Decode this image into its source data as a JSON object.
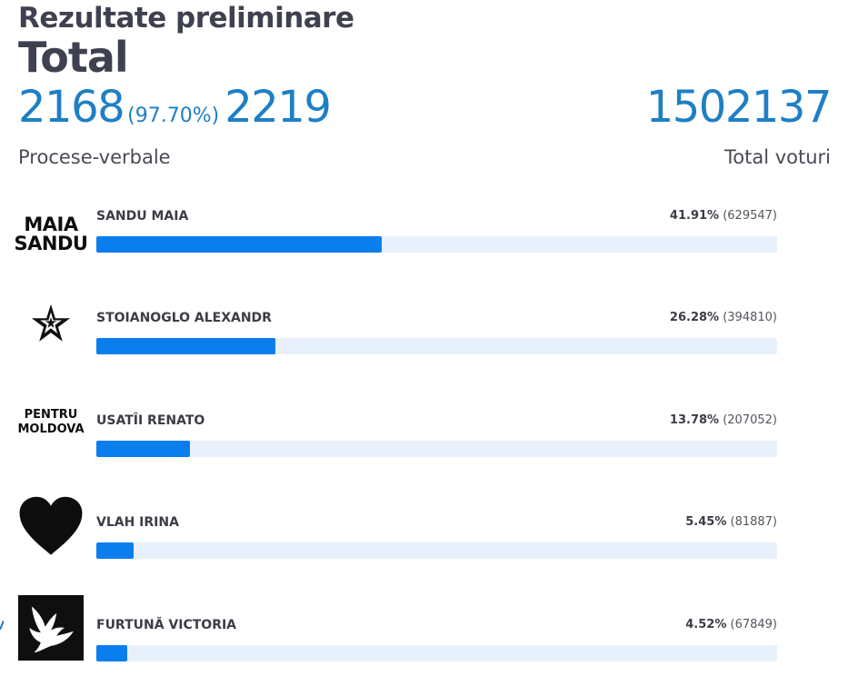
{
  "header": {
    "title": "Rezultate preliminare",
    "subtitle": "Total",
    "processed": "2168",
    "processed_pct": "(97.70%)",
    "total_reports": "2219",
    "reports_label": "Procese-verbale",
    "total_votes": "1502137",
    "votes_label": "Total voturi"
  },
  "candidates": [
    {
      "name": "SANDU MAIA",
      "percent": "41.91%",
      "votes": "(629547)",
      "share": 41.91,
      "logo": "maia-sandu-text-logo",
      "logo_text": [
        "MAIA",
        "SANDU"
      ]
    },
    {
      "name": "STOIANOGLO ALEXANDR",
      "percent": "26.28%",
      "votes": "(394810)",
      "share": 26.28,
      "logo": "star-logo"
    },
    {
      "name": "USATÎI RENATO",
      "percent": "13.78%",
      "votes": "(207052)",
      "share": 13.78,
      "logo": "pentru-moldova-text-logo",
      "logo_text": [
        "PENTRU",
        "MOLDOVA"
      ]
    },
    {
      "name": "VLAH IRINA",
      "percent": "5.45%",
      "votes": "(81887)",
      "share": 5.45,
      "logo": "heart-logo"
    },
    {
      "name": "FURTUNĂ VICTORIA",
      "percent": "4.52%",
      "votes": "(67849)",
      "share": 4.52,
      "logo": "dove-logo"
    }
  ],
  "colors": {
    "accent": "#1e7fc4",
    "bar_fill": "#0b7eed",
    "bar_track": "#e8f1fb"
  }
}
